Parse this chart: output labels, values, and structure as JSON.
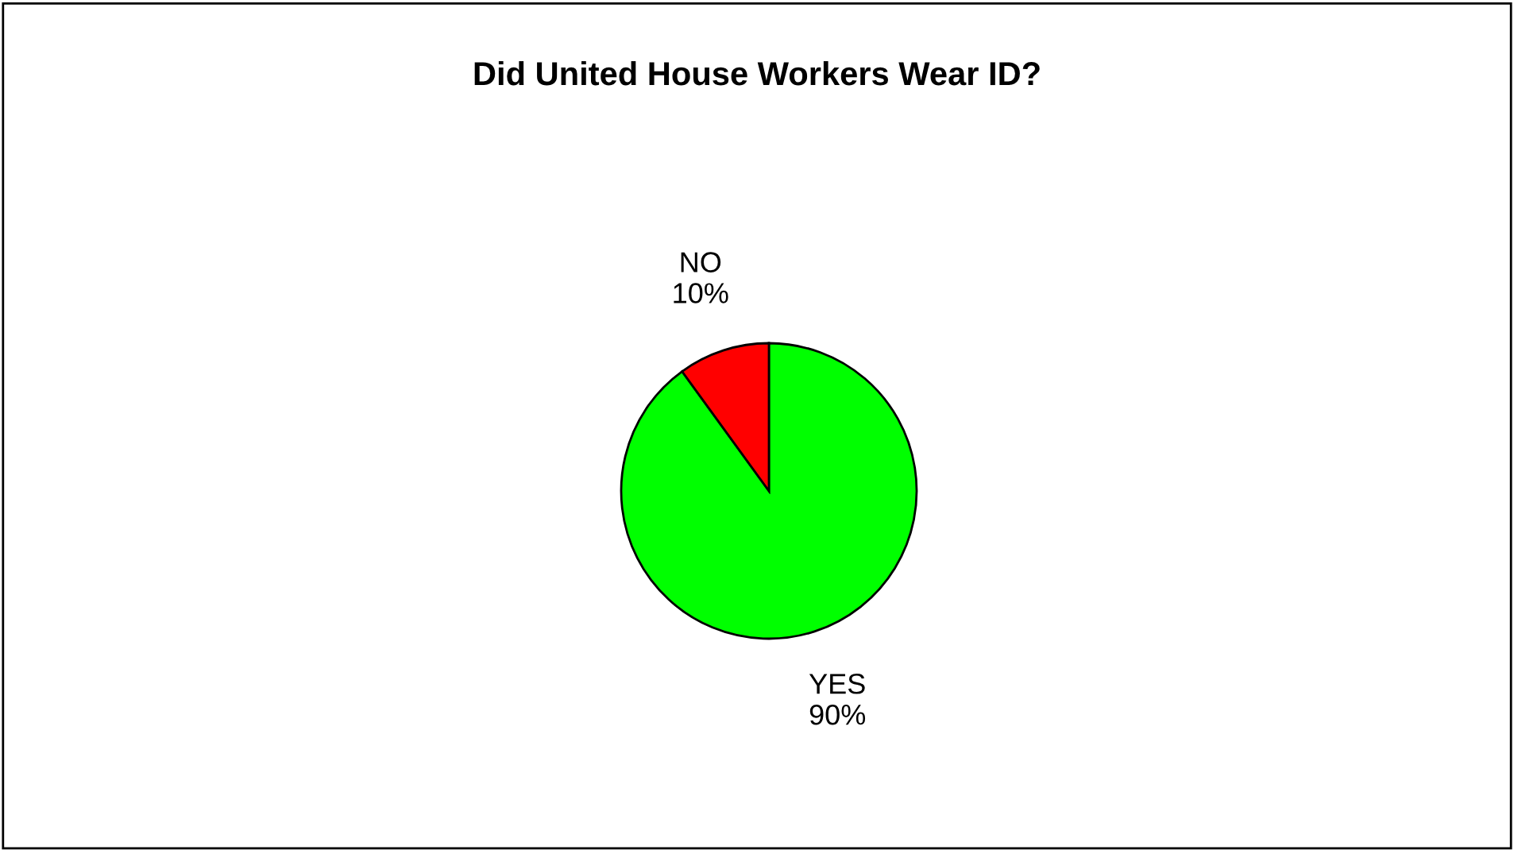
{
  "chart_data": {
    "type": "pie",
    "title": "Did United House Workers Wear ID?",
    "categories": [
      "YES",
      "NO"
    ],
    "values": [
      90,
      10
    ],
    "value_labels": [
      "90%",
      "10%"
    ],
    "colors": [
      "#00ff00",
      "#ff0000"
    ],
    "legend": false
  }
}
